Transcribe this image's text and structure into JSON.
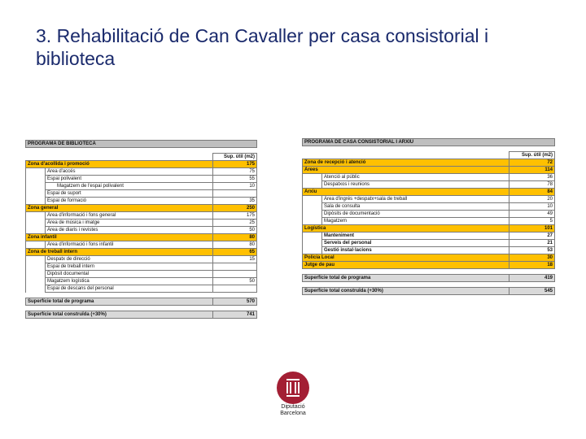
{
  "slide": {
    "title": "3. Rehabilitació de Can Cavaller per casa consistorial i biblioteca"
  },
  "library": {
    "heading": "PROGRAMA DE BIBLIOTECA",
    "col_header": "Sup. útil (m2)",
    "rows": [
      {
        "label": "Zona d'acollida i promoció",
        "value": "175",
        "kind": "zone",
        "level": 1
      },
      {
        "label": "Àrea d'accés",
        "value": "75",
        "kind": "item",
        "level": 2
      },
      {
        "label": "Espai polivalent",
        "value": "55",
        "kind": "item",
        "level": 2
      },
      {
        "label": "Magatzem de l'espai polivalent",
        "value": "10",
        "kind": "item",
        "level": 3
      },
      {
        "label": "Espai de suport",
        "value": "",
        "kind": "item",
        "level": 2
      },
      {
        "label": "Espai de formació",
        "value": "35",
        "kind": "item",
        "level": 2
      },
      {
        "label": "Zona general",
        "value": "250",
        "kind": "zone",
        "level": 0
      },
      {
        "label": "Àrea d'informació i fons general",
        "value": "175",
        "kind": "item",
        "level": 2
      },
      {
        "label": "Àrea de música i imatge",
        "value": "25",
        "kind": "item",
        "level": 2
      },
      {
        "label": "Àrea de diaris i revistes",
        "value": "50",
        "kind": "item",
        "level": 2
      },
      {
        "label": "Zona infantil",
        "value": "80",
        "kind": "zone",
        "level": 0
      },
      {
        "label": "Àrea d'informació i fons infantil",
        "value": "80",
        "kind": "item",
        "level": 2
      },
      {
        "label": "Zona de treball intern",
        "value": "65",
        "kind": "zone",
        "level": 0
      },
      {
        "label": "Despatx de direcció",
        "value": "15",
        "kind": "item",
        "level": 2
      },
      {
        "label": "Espai de treball intern",
        "value": "",
        "kind": "item",
        "level": 2
      },
      {
        "label": "Dipòsit documental",
        "value": "",
        "kind": "item",
        "level": 2
      },
      {
        "label": "Magatzem logística",
        "value": "50",
        "kind": "item",
        "level": 2
      },
      {
        "label": "Espai de descans del personal",
        "value": "",
        "kind": "item",
        "level": 2
      }
    ],
    "total_program": {
      "label": "Superfície total de programa",
      "value": "570"
    },
    "total_built": {
      "label": "Superfície total construïda (+30%)",
      "value": "741"
    }
  },
  "town_hall": {
    "heading": "PROGRAMA DE CASA CONSISTORIAL I ARXIU",
    "col_header": "Sup. útil (m2)",
    "rows": [
      {
        "label": "Zona de recepció i atenció",
        "value": "72",
        "kind": "zone",
        "level": 0
      },
      {
        "label": "Àrees",
        "value": "114",
        "kind": "zone",
        "level": 0
      },
      {
        "label": "Atenció al públic",
        "value": "36",
        "kind": "item",
        "level": 2
      },
      {
        "label": "Despatxos i reunions",
        "value": "78",
        "kind": "item",
        "level": 2
      },
      {
        "label": "Arxiu",
        "value": "84",
        "kind": "zone",
        "level": 0
      },
      {
        "label": "Àrea d'ingrés +despatx+sala de treball",
        "value": "20",
        "kind": "item",
        "level": 2
      },
      {
        "label": "Sala de consulta",
        "value": "10",
        "kind": "item",
        "level": 2
      },
      {
        "label": "Dipòsits de documentació",
        "value": "49",
        "kind": "item",
        "level": 2
      },
      {
        "label": "Magatzem",
        "value": "5",
        "kind": "item",
        "level": 2
      },
      {
        "label": "Logística",
        "value": "101",
        "kind": "zone",
        "level": 0
      },
      {
        "label": "Manteniment",
        "value": "27",
        "kind": "bold",
        "level": 2
      },
      {
        "label": "Serveis del personal",
        "value": "21",
        "kind": "bold",
        "level": 2
      },
      {
        "label": "Gestió instal·lacions",
        "value": "53",
        "kind": "bold",
        "level": 2
      },
      {
        "label": "Policia Local",
        "value": "30",
        "kind": "zone",
        "level": 0
      },
      {
        "label": "Jutge de pau",
        "value": "18",
        "kind": "zone",
        "level": 0
      }
    ],
    "total_program": {
      "label": "Superfície total de programa",
      "value": "419"
    },
    "total_built": {
      "label": "Superfície total construïda (+30%)",
      "value": "545"
    }
  },
  "logo": {
    "icon": "diputacio-barcelona-emblem-icon",
    "line1": "Diputació",
    "line2": "Barcelona",
    "color": "#a31f34"
  }
}
